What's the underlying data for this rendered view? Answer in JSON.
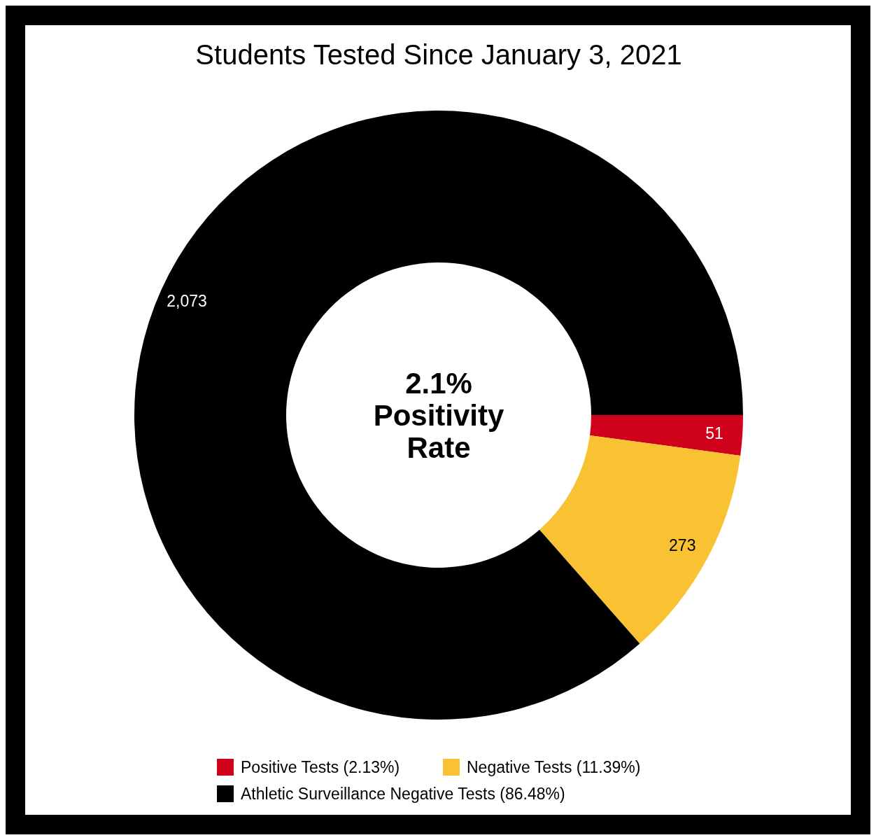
{
  "chart_data": {
    "type": "donut",
    "title": "Students Tested Since January 3, 2021",
    "categories": [
      "Positive Tests (2.13%)",
      "Negative Tests (11.39%)",
      "Athletic Surveillance Negative Tests (86.48%)"
    ],
    "values": [
      51,
      273,
      2073
    ],
    "colors": [
      "#d0021b",
      "#f9c233",
      "#000000"
    ],
    "value_labels": [
      "51",
      "273",
      "2,073"
    ],
    "legend": "bottom",
    "annotations": [
      "2.1% Positivity Rate"
    ]
  }
}
